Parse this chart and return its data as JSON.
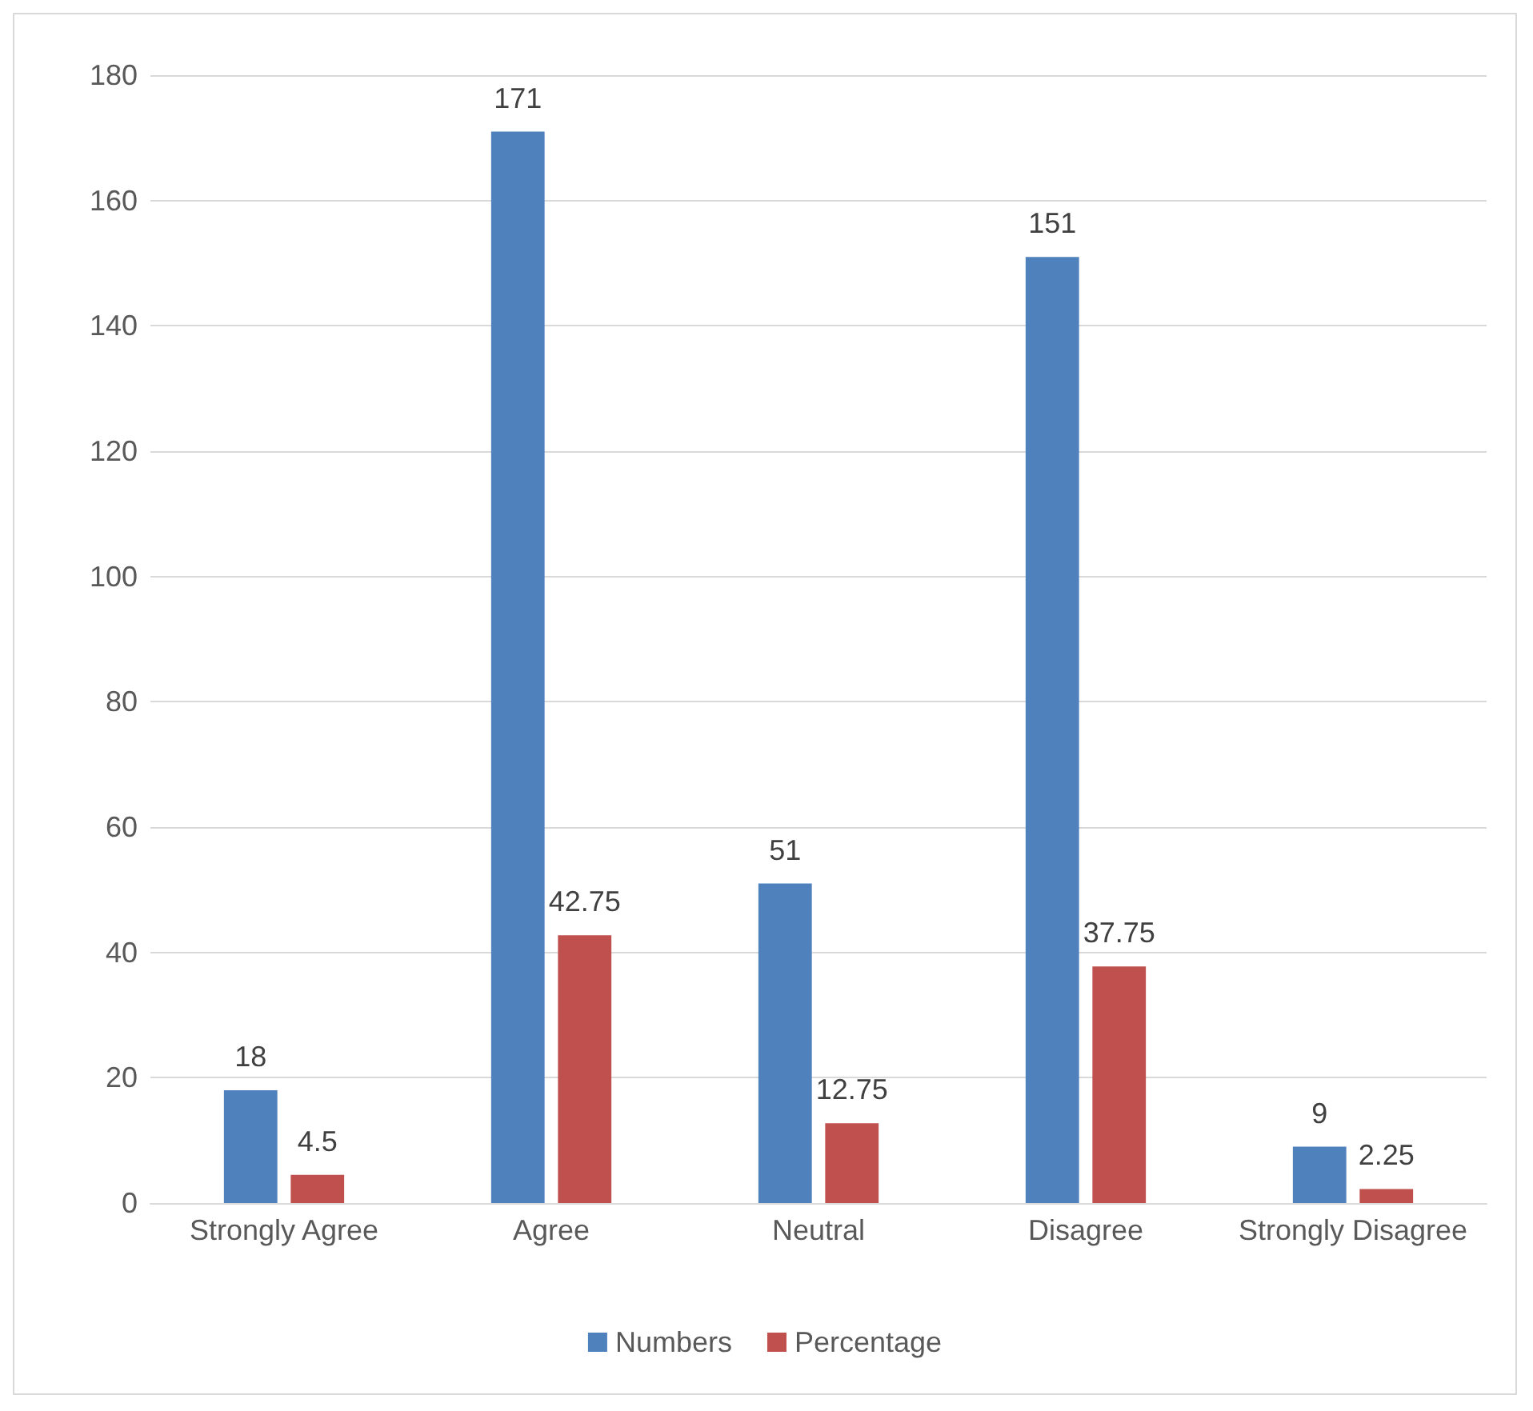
{
  "chart_data": {
    "type": "bar",
    "categories": [
      "Strongly Agree",
      "Agree",
      "Neutral",
      "Disagree",
      "Strongly Disagree"
    ],
    "series": [
      {
        "name": "Numbers",
        "color": "#4f81bd",
        "values": [
          18,
          171,
          51,
          151,
          9
        ]
      },
      {
        "name": "Percentage",
        "color": "#c0504d",
        "values": [
          4.5,
          42.75,
          12.75,
          37.75,
          2.25
        ]
      }
    ],
    "ylim": [
      0,
      180
    ],
    "yticks": [
      0,
      20,
      40,
      60,
      80,
      100,
      120,
      140,
      160,
      180
    ],
    "grid": "y",
    "legend": "bottom",
    "data_labels": true
  }
}
